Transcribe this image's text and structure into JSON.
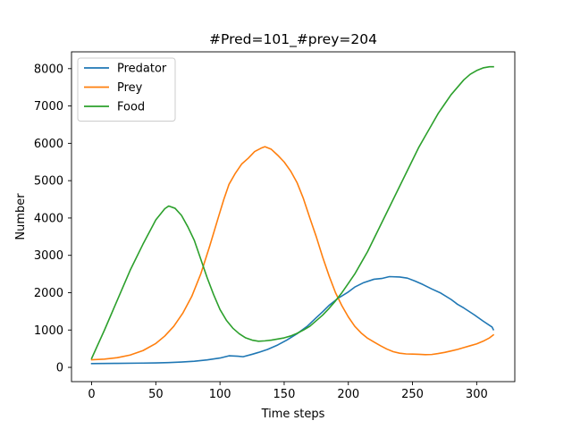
{
  "chart_data": {
    "type": "line",
    "title": "#Pred=101_#prey=204",
    "xlabel": "Time steps",
    "ylabel": "Number",
    "xlim": [
      -15.7,
      329.7
    ],
    "ylim": [
      -382,
      8450
    ],
    "xticks": [
      0,
      50,
      100,
      150,
      200,
      250,
      300
    ],
    "yticks": [
      0,
      1000,
      2000,
      3000,
      4000,
      5000,
      6000,
      7000,
      8000
    ],
    "grid": false,
    "legend_position": "upper-left",
    "series": [
      {
        "name": "Predator",
        "color": "#1f77b4",
        "points": [
          [
            0,
            101
          ],
          [
            20,
            108
          ],
          [
            40,
            115
          ],
          [
            50,
            118
          ],
          [
            60,
            128
          ],
          [
            70,
            143
          ],
          [
            80,
            163
          ],
          [
            90,
            200
          ],
          [
            100,
            250
          ],
          [
            107,
            310
          ],
          [
            114,
            298
          ],
          [
            118,
            285
          ],
          [
            125,
            350
          ],
          [
            130,
            400
          ],
          [
            137,
            480
          ],
          [
            145,
            600
          ],
          [
            152,
            730
          ],
          [
            160,
            900
          ],
          [
            168,
            1100
          ],
          [
            175,
            1330
          ],
          [
            180,
            1490
          ],
          [
            185,
            1660
          ],
          [
            192,
            1850
          ],
          [
            200,
            2020
          ],
          [
            205,
            2150
          ],
          [
            212,
            2270
          ],
          [
            220,
            2360
          ],
          [
            226,
            2380
          ],
          [
            232,
            2430
          ],
          [
            240,
            2420
          ],
          [
            246,
            2390
          ],
          [
            252,
            2310
          ],
          [
            258,
            2220
          ],
          [
            265,
            2100
          ],
          [
            272,
            1990
          ],
          [
            280,
            1820
          ],
          [
            285,
            1690
          ],
          [
            290,
            1590
          ],
          [
            298,
            1410
          ],
          [
            305,
            1240
          ],
          [
            312,
            1080
          ],
          [
            313,
            1010
          ]
        ]
      },
      {
        "name": "Prey",
        "color": "#ff7f0e",
        "points": [
          [
            0,
            204
          ],
          [
            10,
            220
          ],
          [
            20,
            260
          ],
          [
            30,
            330
          ],
          [
            40,
            450
          ],
          [
            50,
            640
          ],
          [
            57,
            840
          ],
          [
            64,
            1100
          ],
          [
            71,
            1450
          ],
          [
            78,
            1900
          ],
          [
            85,
            2500
          ],
          [
            92,
            3250
          ],
          [
            99,
            4050
          ],
          [
            103,
            4500
          ],
          [
            107,
            4900
          ],
          [
            112,
            5200
          ],
          [
            117,
            5450
          ],
          [
            122,
            5600
          ],
          [
            127,
            5780
          ],
          [
            132,
            5870
          ],
          [
            135,
            5910
          ],
          [
            140,
            5840
          ],
          [
            145,
            5680
          ],
          [
            150,
            5500
          ],
          [
            155,
            5260
          ],
          [
            160,
            4950
          ],
          [
            165,
            4520
          ],
          [
            170,
            4000
          ],
          [
            175,
            3500
          ],
          [
            180,
            2950
          ],
          [
            185,
            2450
          ],
          [
            190,
            2000
          ],
          [
            195,
            1650
          ],
          [
            200,
            1350
          ],
          [
            205,
            1100
          ],
          [
            210,
            920
          ],
          [
            215,
            780
          ],
          [
            220,
            680
          ],
          [
            225,
            580
          ],
          [
            230,
            490
          ],
          [
            235,
            420
          ],
          [
            240,
            380
          ],
          [
            245,
            360
          ],
          [
            250,
            355
          ],
          [
            255,
            350
          ],
          [
            260,
            340
          ],
          [
            265,
            345
          ],
          [
            270,
            370
          ],
          [
            275,
            400
          ],
          [
            280,
            440
          ],
          [
            285,
            480
          ],
          [
            290,
            530
          ],
          [
            295,
            580
          ],
          [
            300,
            630
          ],
          [
            305,
            700
          ],
          [
            310,
            790
          ],
          [
            313,
            870
          ]
        ]
      },
      {
        "name": "Food",
        "color": "#2ca02c",
        "points": [
          [
            0,
            240
          ],
          [
            10,
            1000
          ],
          [
            20,
            1800
          ],
          [
            30,
            2600
          ],
          [
            40,
            3300
          ],
          [
            50,
            3950
          ],
          [
            57,
            4250
          ],
          [
            60,
            4320
          ],
          [
            65,
            4260
          ],
          [
            70,
            4070
          ],
          [
            75,
            3760
          ],
          [
            80,
            3400
          ],
          [
            85,
            2900
          ],
          [
            90,
            2400
          ],
          [
            95,
            1950
          ],
          [
            100,
            1550
          ],
          [
            105,
            1260
          ],
          [
            110,
            1050
          ],
          [
            115,
            900
          ],
          [
            120,
            790
          ],
          [
            125,
            730
          ],
          [
            130,
            700
          ],
          [
            135,
            710
          ],
          [
            140,
            730
          ],
          [
            145,
            760
          ],
          [
            150,
            790
          ],
          [
            155,
            840
          ],
          [
            160,
            910
          ],
          [
            165,
            1000
          ],
          [
            170,
            1100
          ],
          [
            175,
            1250
          ],
          [
            180,
            1400
          ],
          [
            185,
            1580
          ],
          [
            190,
            1780
          ],
          [
            195,
            2000
          ],
          [
            200,
            2250
          ],
          [
            205,
            2500
          ],
          [
            210,
            2800
          ],
          [
            215,
            3100
          ],
          [
            220,
            3450
          ],
          [
            225,
            3800
          ],
          [
            230,
            4150
          ],
          [
            235,
            4500
          ],
          [
            240,
            4850
          ],
          [
            245,
            5200
          ],
          [
            250,
            5550
          ],
          [
            255,
            5900
          ],
          [
            260,
            6200
          ],
          [
            265,
            6500
          ],
          [
            270,
            6800
          ],
          [
            275,
            7050
          ],
          [
            280,
            7300
          ],
          [
            285,
            7500
          ],
          [
            290,
            7700
          ],
          [
            295,
            7850
          ],
          [
            300,
            7950
          ],
          [
            305,
            8020
          ],
          [
            310,
            8050
          ],
          [
            313,
            8050
          ]
        ]
      }
    ]
  }
}
